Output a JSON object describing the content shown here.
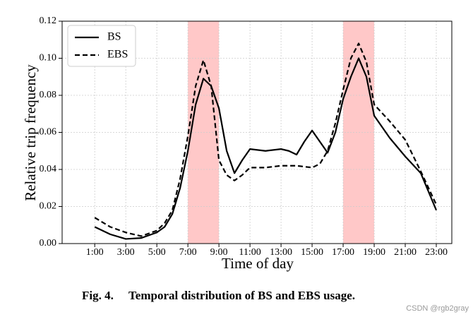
{
  "chart_data": {
    "type": "line",
    "x_label": "Time of day",
    "y_label": "Relative trip frequency",
    "caption_prefix": "Fig. 4.",
    "caption": "Temporal distribution of BS and EBS usage.",
    "watermark": "CSDN @rgb2gray",
    "x": [
      1,
      2,
      3,
      4,
      5,
      5.5,
      6,
      6.5,
      7,
      7.5,
      8,
      8.5,
      9,
      9.5,
      10,
      10.5,
      11,
      12,
      13,
      13.5,
      14,
      14.5,
      15,
      15.5,
      16,
      16.5,
      17,
      17.5,
      18,
      18.5,
      19,
      20,
      21,
      22,
      23
    ],
    "series": [
      {
        "name": "BS",
        "color": "#000000",
        "dash": "solid",
        "values": [
          0.009,
          0.005,
          0.0025,
          0.003,
          0.006,
          0.009,
          0.016,
          0.03,
          0.05,
          0.075,
          0.089,
          0.085,
          0.073,
          0.05,
          0.038,
          0.045,
          0.051,
          0.05,
          0.051,
          0.05,
          0.048,
          0.055,
          0.061,
          0.055,
          0.049,
          0.06,
          0.078,
          0.09,
          0.1,
          0.09,
          0.069,
          0.057,
          0.047,
          0.038,
          0.018
        ]
      },
      {
        "name": "EBS",
        "color": "#000000",
        "dash": "dashed",
        "values": [
          0.014,
          0.009,
          0.006,
          0.004,
          0.007,
          0.011,
          0.018,
          0.035,
          0.058,
          0.085,
          0.099,
          0.085,
          0.045,
          0.037,
          0.034,
          0.037,
          0.041,
          0.041,
          0.042,
          0.042,
          0.042,
          0.0415,
          0.041,
          0.043,
          0.05,
          0.065,
          0.083,
          0.1,
          0.108,
          0.098,
          0.075,
          0.066,
          0.056,
          0.039,
          0.021
        ]
      }
    ],
    "highlights": [
      [
        7,
        9
      ],
      [
        17,
        19
      ]
    ],
    "highlight_color": "#ffc8c8",
    "xlim": [
      -1.1,
      24
    ],
    "xticks": [
      {
        "value": 1,
        "label": "1:00"
      },
      {
        "value": 3,
        "label": "3:00"
      },
      {
        "value": 5,
        "label": "5:00"
      },
      {
        "value": 7,
        "label": "7:00"
      },
      {
        "value": 9,
        "label": "9:00"
      },
      {
        "value": 11,
        "label": "11:00"
      },
      {
        "value": 13,
        "label": "13:00"
      },
      {
        "value": 15,
        "label": "15:00"
      },
      {
        "value": 17,
        "label": "17:00"
      },
      {
        "value": 19,
        "label": "19:00"
      },
      {
        "value": 21,
        "label": "21:00"
      },
      {
        "value": 23,
        "label": "23:00"
      }
    ],
    "ylim": [
      0,
      0.12
    ],
    "yticks": [
      {
        "value": 0,
        "label": "0.00"
      },
      {
        "value": 0.02,
        "label": "0.02"
      },
      {
        "value": 0.04,
        "label": "0.04"
      },
      {
        "value": 0.06,
        "label": "0.06"
      },
      {
        "value": 0.08,
        "label": "0.08"
      },
      {
        "value": 0.1,
        "label": "0.10"
      },
      {
        "value": 0.12,
        "label": "0.12"
      }
    ],
    "grid": true,
    "legend": "upper left"
  }
}
